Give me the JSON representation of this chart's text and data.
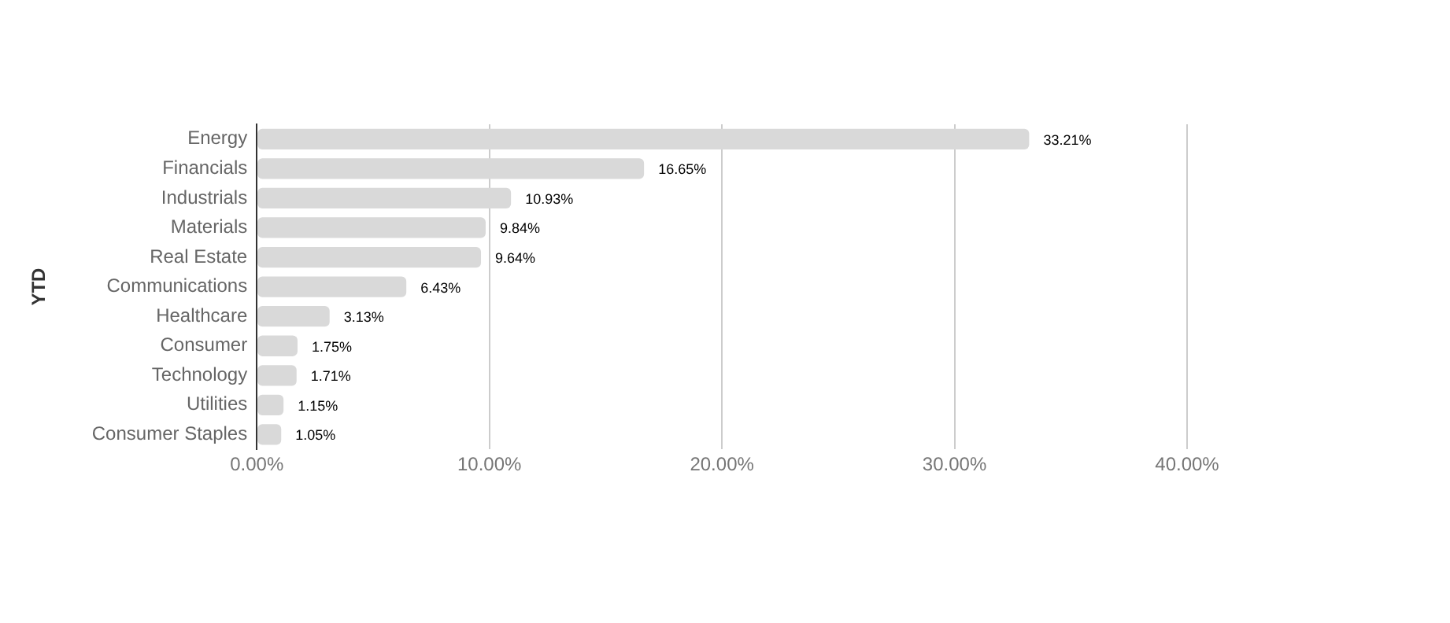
{
  "chart_data": {
    "type": "bar",
    "orientation": "horizontal",
    "ylabel": "YTD",
    "categories": [
      "Energy",
      "Financials",
      "Industrials",
      "Materials",
      "Real Estate",
      "Communications",
      "Healthcare",
      "Consumer",
      "Technology",
      "Utilities",
      "Consumer Staples"
    ],
    "values": [
      33.21,
      16.65,
      10.93,
      9.84,
      9.64,
      6.43,
      3.13,
      1.75,
      1.71,
      1.15,
      1.05
    ],
    "value_labels": [
      "33.21%",
      "16.65%",
      "10.93%",
      "9.84%",
      "9.64%",
      "6.43%",
      "3.13%",
      "1.75%",
      "1.71%",
      "1.15%",
      "1.05%"
    ],
    "color": "#d9d9d9",
    "xlim": [
      0,
      40
    ],
    "xticks": [
      {
        "value": 0,
        "label": "0.00%"
      },
      {
        "value": 10,
        "label": "10.00%"
      },
      {
        "value": 20,
        "label": "20.00%"
      },
      {
        "value": 30,
        "label": "30.00%"
      },
      {
        "value": 40,
        "label": "40.00%"
      }
    ],
    "grid": "x",
    "legend": false
  }
}
